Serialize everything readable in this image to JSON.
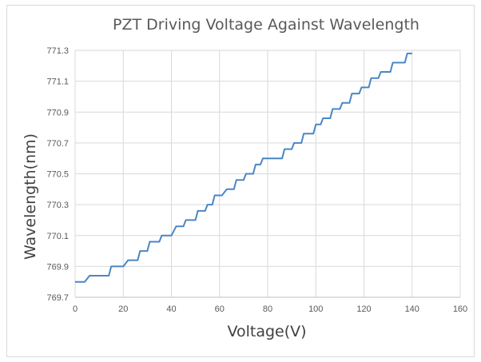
{
  "chart_data": {
    "type": "line",
    "title": "PZT Driving Voltage Against Wavelength",
    "xlabel": "Voltage(V)",
    "ylabel": "Wavelength(nm)",
    "xlim": [
      0,
      160
    ],
    "ylim": [
      769.7,
      771.3
    ],
    "x_ticks": [
      "0",
      "20",
      "40",
      "60",
      "80",
      "100",
      "120",
      "140",
      "160"
    ],
    "y_ticks": [
      "769.7",
      "769.9",
      "770.1",
      "770.3",
      "770.5",
      "770.7",
      "770.9",
      "771.1",
      "771.3"
    ],
    "grid": true,
    "legend": "none",
    "series": [
      {
        "color": "#4a86c5",
        "points": [
          [
            0,
            769.8
          ],
          [
            4,
            769.8
          ],
          [
            6,
            769.84
          ],
          [
            14,
            769.84
          ],
          [
            15,
            769.9
          ],
          [
            20,
            769.9
          ],
          [
            22,
            769.94
          ],
          [
            26,
            769.94
          ],
          [
            27,
            770.0
          ],
          [
            30,
            770.0
          ],
          [
            31,
            770.06
          ],
          [
            35,
            770.06
          ],
          [
            36,
            770.1
          ],
          [
            40,
            770.1
          ],
          [
            42,
            770.16
          ],
          [
            45,
            770.16
          ],
          [
            46,
            770.2
          ],
          [
            50,
            770.2
          ],
          [
            51,
            770.26
          ],
          [
            54,
            770.26
          ],
          [
            55,
            770.3
          ],
          [
            57,
            770.3
          ],
          [
            58,
            770.36
          ],
          [
            61,
            770.36
          ],
          [
            63,
            770.4
          ],
          [
            66,
            770.4
          ],
          [
            67,
            770.46
          ],
          [
            70,
            770.46
          ],
          [
            71,
            770.5
          ],
          [
            74,
            770.5
          ],
          [
            75,
            770.56
          ],
          [
            77,
            770.56
          ],
          [
            78,
            770.6
          ],
          [
            86,
            770.6
          ],
          [
            87,
            770.66
          ],
          [
            90,
            770.66
          ],
          [
            91,
            770.7
          ],
          [
            94,
            770.7
          ],
          [
            95,
            770.76
          ],
          [
            99,
            770.76
          ],
          [
            100,
            770.82
          ],
          [
            102,
            770.82
          ],
          [
            103,
            770.86
          ],
          [
            106,
            770.86
          ],
          [
            107,
            770.92
          ],
          [
            110,
            770.92
          ],
          [
            111,
            770.96
          ],
          [
            114,
            770.96
          ],
          [
            115,
            771.02
          ],
          [
            118,
            771.02
          ],
          [
            119,
            771.06
          ],
          [
            122,
            771.06
          ],
          [
            123,
            771.12
          ],
          [
            126,
            771.12
          ],
          [
            127,
            771.16
          ],
          [
            131,
            771.16
          ],
          [
            132,
            771.22
          ],
          [
            137,
            771.22
          ],
          [
            138,
            771.28
          ],
          [
            140,
            771.28
          ]
        ]
      }
    ]
  }
}
